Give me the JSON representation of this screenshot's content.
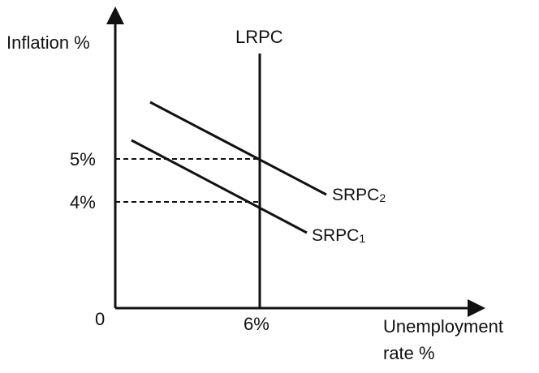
{
  "axes": {
    "y_label": "Inflation %",
    "x_label_line1": "Unemployment",
    "x_label_line2": "rate %",
    "origin_label": "0"
  },
  "ticks": {
    "y_high": "5%",
    "y_low": "4%",
    "x_natural": "6%"
  },
  "curves": {
    "lrpc": "LRPC",
    "srpc2_base": "SRPC",
    "srpc2_sub": "2",
    "srpc1_base": "SRPC",
    "srpc1_sub": "1"
  },
  "colors": {
    "line": "#111111",
    "background": "#ffffff"
  }
}
